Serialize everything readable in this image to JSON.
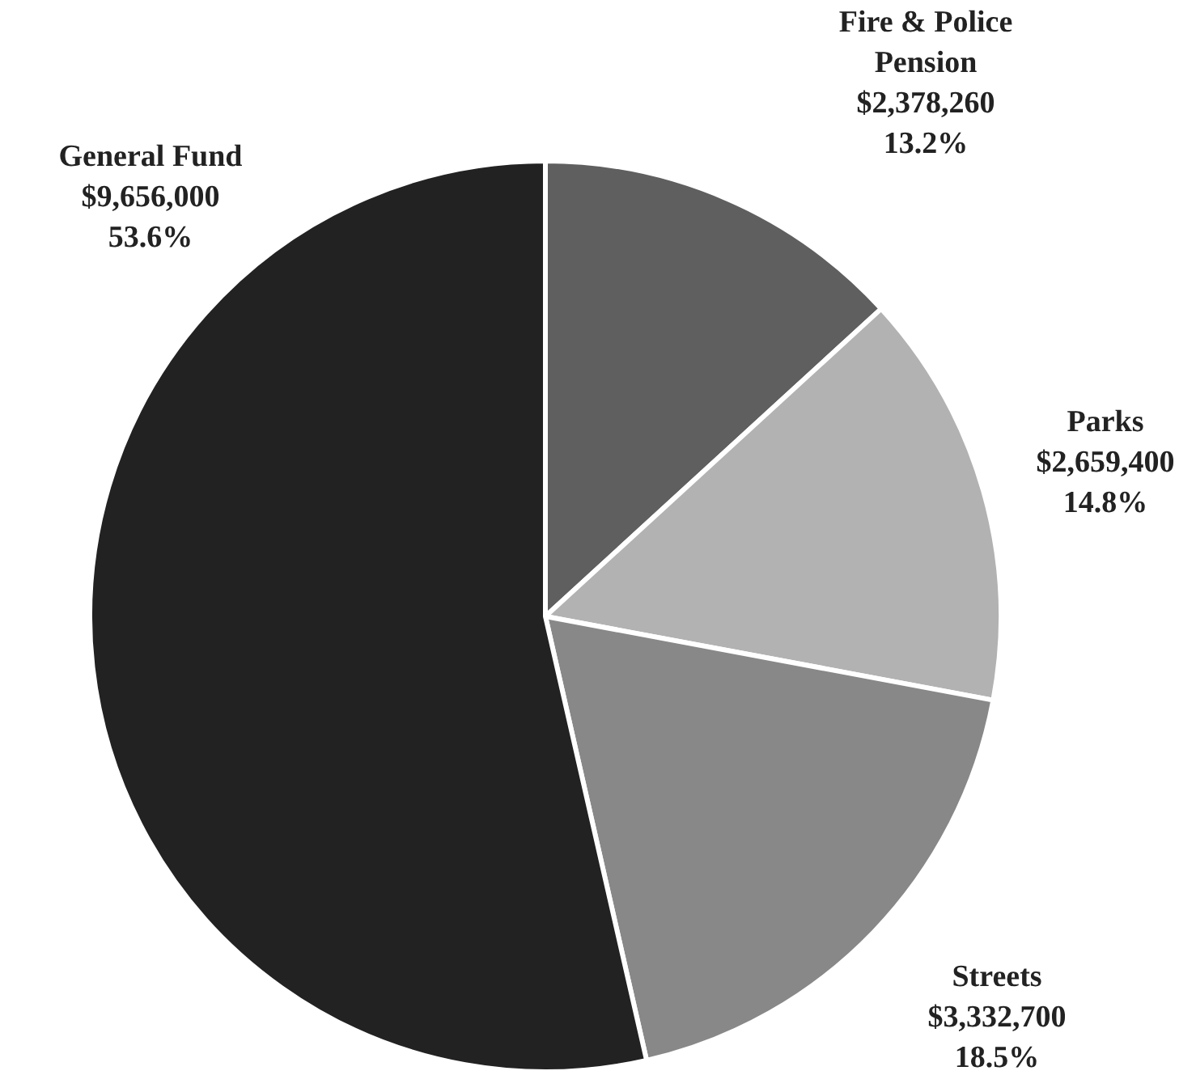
{
  "chart_data": {
    "type": "pie",
    "categories": [
      "Fire & Police Pension",
      "Parks",
      "Streets",
      "General Fund"
    ],
    "values": [
      2378260,
      2659400,
      3332700,
      9656000
    ],
    "colors": [
      "#5f5f5f",
      "#b2b2b2",
      "#888888",
      "#222222"
    ],
    "value_labels": [
      "$2,378,260\n13.2%",
      "$2,659,400\n14.8%",
      "$3,332,700\n18.5%",
      "$9,656,000\n53.6%"
    ]
  }
}
